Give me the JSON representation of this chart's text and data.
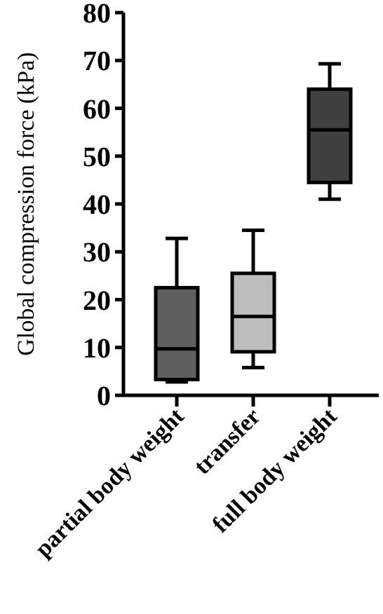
{
  "chart_data": {
    "type": "box",
    "ylabel": "Global compression force (kPa)",
    "categories": [
      "partial body weight",
      "transfer",
      "full body weight"
    ],
    "boxes": [
      {
        "low": 2.8,
        "q1": 3.3,
        "median": 9.7,
        "q3": 22.5,
        "high": 32.8
      },
      {
        "low": 5.8,
        "q1": 9.1,
        "median": 16.5,
        "q3": 25.5,
        "high": 34.5
      },
      {
        "low": 41,
        "q1": 44.5,
        "median": 55.5,
        "q3": 64,
        "high": 69.3
      }
    ],
    "colors": [
      "#5f5f5f",
      "#bdbdbd",
      "#404040"
    ],
    "ylim": [
      0,
      80
    ],
    "yticks": [
      0,
      10,
      20,
      30,
      40,
      50,
      60,
      70,
      80
    ],
    "grid": false
  }
}
